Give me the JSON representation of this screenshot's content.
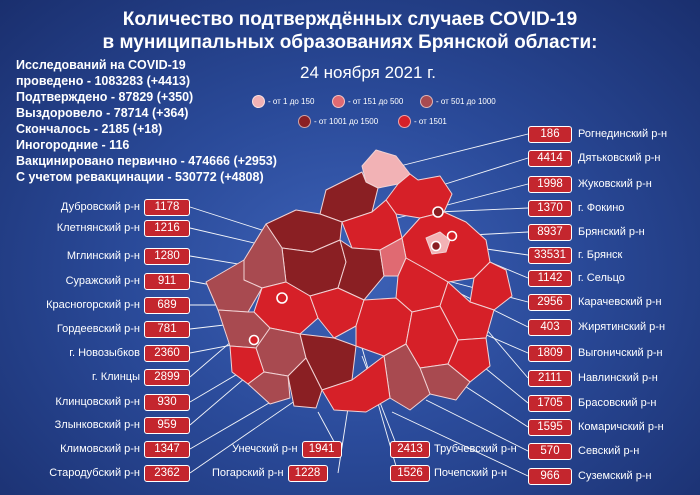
{
  "title": {
    "line1": "Количество подтверждённых случаев COVID-19",
    "line2": "в муниципальных образованиях Брянской области:",
    "date": "24 ноября 2021 г."
  },
  "stats": [
    "Исследований на COVID-19",
    "проведено - 1083283 (+4413)",
    "Подтверждено - 87829 (+350)",
    "Выздоровело - 78714 (+364)",
    "Скончалось - 2185 (+18)",
    "Иногородние - 116",
    "Вакцинировано первично - 474666 (+2953)",
    "С учетом ревакцинации - 530772 (+4808)"
  ],
  "legend": [
    {
      "label": "- от 1 до 150",
      "color": "#f2b2b5"
    },
    {
      "label": "- от 151 до 500",
      "color": "#e06a72"
    },
    {
      "label": "- от 501 до 1000",
      "color": "#a84a50"
    },
    {
      "label": "- от 1001 до 1500",
      "color": "#8a1f23"
    },
    {
      "label": "- от 1501",
      "color": "#d62028"
    }
  ],
  "districts_left": [
    {
      "name": "Дубровский р-н",
      "value": "1178"
    },
    {
      "name": "Клетнянский р-н",
      "value": "1216"
    },
    {
      "name": "Мглинский р-н",
      "value": "1280"
    },
    {
      "name": "Суражский р-н",
      "value": "911"
    },
    {
      "name": "Красногорский р-н",
      "value": "689"
    },
    {
      "name": "Гордеевский р-н",
      "value": "781"
    },
    {
      "name": "г. Новозыбков",
      "value": "2360"
    },
    {
      "name": "г. Клинцы",
      "value": "2899"
    },
    {
      "name": "Клинцовский р-н",
      "value": "930"
    },
    {
      "name": "Злынковский р-н",
      "value": "959"
    },
    {
      "name": "Климовский р-н",
      "value": "1347"
    },
    {
      "name": "Стародубский р-н",
      "value": "2362"
    }
  ],
  "districts_right": [
    {
      "name": "Рогнединский р-н",
      "value": "186"
    },
    {
      "name": "Дятьковский р-н",
      "value": "4414"
    },
    {
      "name": "Жуковский р-н",
      "value": "1998"
    },
    {
      "name": "г. Фокино",
      "value": "1370"
    },
    {
      "name": "Брянский р-н",
      "value": "8937"
    },
    {
      "name": "г. Брянск",
      "value": "33531"
    },
    {
      "name": "г. Сельцо",
      "value": "1142"
    },
    {
      "name": "Карачевский р-н",
      "value": "2956"
    },
    {
      "name": "Жирятинский р-н",
      "value": "403"
    },
    {
      "name": "Выгоничский р-н",
      "value": "1809"
    },
    {
      "name": "Навлинский р-н",
      "value": "2111"
    },
    {
      "name": "Брасовский р-н",
      "value": "1705"
    },
    {
      "name": "Комаричский р-н",
      "value": "1595"
    },
    {
      "name": "Севский р-н",
      "value": "570"
    },
    {
      "name": "Суземский р-н",
      "value": "966"
    }
  ],
  "districts_mid": [
    {
      "name": "Унечский р-н",
      "value": "1941"
    },
    {
      "name": "Погарский р-н",
      "value": "1228"
    },
    {
      "name": "Трубчевский р-н",
      "value": "2413"
    },
    {
      "name": "Почепский р-н",
      "value": "1526"
    }
  ]
}
